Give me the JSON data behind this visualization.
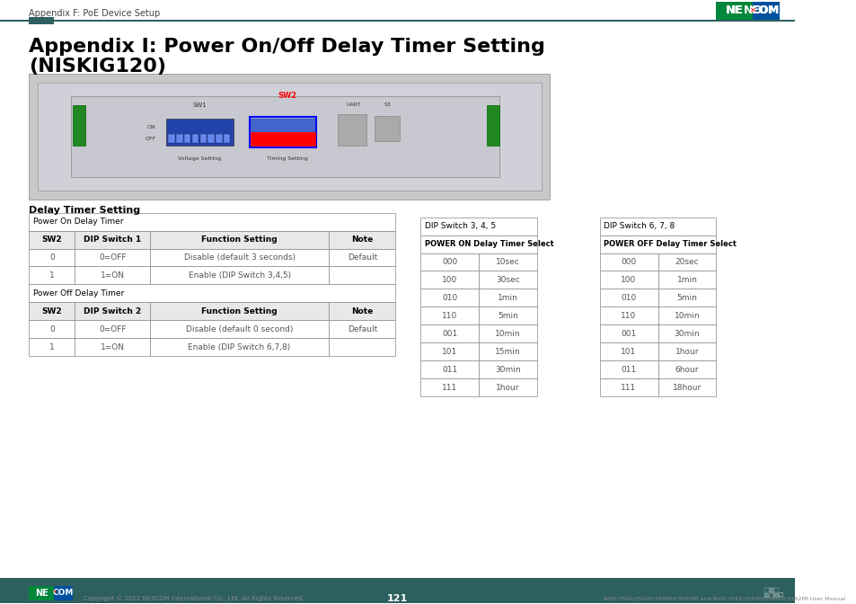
{
  "bg_color": "#ffffff",
  "header_text": "Appendix F: PoE Device Setup",
  "header_line_color": "#2d5f5f",
  "header_line_rect_color": "#2d5f5f",
  "title_line1": "Appendix I: Power On/Off Delay Timer Setting",
  "title_line2": "(NISKIG120)",
  "section_title": "Delay Timer Setting",
  "table1_title": "Power On Delay Timer",
  "table1_headers": [
    "SW2",
    "DIP Switch 1",
    "Function Setting",
    "Note"
  ],
  "table1_rows": [
    [
      "0",
      "0=OFF",
      "Disable (default 3 seconds)",
      "Default"
    ],
    [
      "1",
      "1=ON",
      "Enable (DIP Switch 3,4,5)",
      ""
    ]
  ],
  "table2_title": "Power Off Delay Timer",
  "table2_headers": [
    "SW2",
    "DIP Switch 2",
    "Function Setting",
    "Note"
  ],
  "table2_rows": [
    [
      "0",
      "0=OFF",
      "Disable (default 0 second)",
      "Default"
    ],
    [
      "1",
      "1=ON",
      "Enable (DIP Switch 6,7,8)",
      ""
    ]
  ],
  "table3_title": "DIP Switch 3, 4, 5",
  "table3_subtitle": "POWER ON Delay Timer Select",
  "table3_rows": [
    [
      "000",
      "10sec"
    ],
    [
      "100",
      "30sec"
    ],
    [
      "010",
      "1min"
    ],
    [
      "110",
      "5min"
    ],
    [
      "001",
      "10min"
    ],
    [
      "101",
      "15min"
    ],
    [
      "011",
      "30min"
    ],
    [
      "111",
      "1hour"
    ]
  ],
  "table4_title": "DIP Switch 6, 7, 8",
  "table4_subtitle": "POWER OFF Delay Timer Select",
  "table4_rows": [
    [
      "000",
      "20sec"
    ],
    [
      "100",
      "1min"
    ],
    [
      "010",
      "5min"
    ],
    [
      "110",
      "10min"
    ],
    [
      "001",
      "30min"
    ],
    [
      "101",
      "1hour"
    ],
    [
      "011",
      "6hour"
    ],
    [
      "111",
      "18hour"
    ]
  ],
  "footer_bar_color": "#2d5f5f",
  "footer_text_left": "Copyright © 2012 NEXCOM International Co., Ltd. All Rights Reserved.",
  "footer_text_center": "121",
  "footer_text_right": "NViS 3540/3540H/3540P4/3540P8 and NViS 3542/3542H/3542P4/3542P8 User Manual",
  "nexcom_green": "#00873c",
  "nexcom_blue": "#0050a0",
  "table_border_color": "#888888",
  "table_header_bg": "#e8e8e8",
  "table_row_bg": "#ffffff",
  "table_header_text_color": "#000000",
  "table_data_text_color": "#555555"
}
